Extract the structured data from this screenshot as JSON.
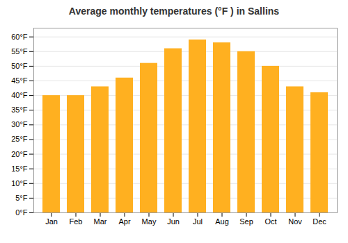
{
  "chart_data": {
    "type": "bar",
    "title": "Average monthly temperatures (°F ) in Sallins",
    "categories": [
      "Jan",
      "Feb",
      "Mar",
      "Apr",
      "May",
      "Jun",
      "Jul",
      "Aug",
      "Sep",
      "Oct",
      "Nov",
      "Dec"
    ],
    "values": [
      40,
      40,
      43,
      46,
      51,
      56,
      59,
      58,
      55,
      50,
      43,
      41
    ],
    "color": "#FFB020",
    "ylim": [
      0,
      63
    ],
    "yticks": [
      {
        "value": 0,
        "label": "0°F"
      },
      {
        "value": 5,
        "label": "5°F"
      },
      {
        "value": 10,
        "label": "10°F"
      },
      {
        "value": 15,
        "label": "15°F"
      },
      {
        "value": 20,
        "label": "20°F"
      },
      {
        "value": 25,
        "label": "25°F"
      },
      {
        "value": 30,
        "label": "30°F"
      },
      {
        "value": 35,
        "label": "35°F"
      },
      {
        "value": 40,
        "label": "40°F"
      },
      {
        "value": 45,
        "label": "45°F"
      },
      {
        "value": 50,
        "label": "50°F"
      },
      {
        "value": 55,
        "label": "55°F"
      },
      {
        "value": 60,
        "label": "60°F"
      }
    ],
    "grid": true
  }
}
